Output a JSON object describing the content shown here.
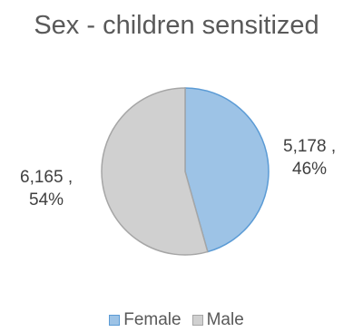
{
  "chart_data": {
    "type": "pie",
    "title": "Sex - children sensitized",
    "categories": [
      "Female",
      "Male"
    ],
    "values": [
      5178,
      6165
    ],
    "value_labels": [
      "5,178 ,",
      "6,165 ,"
    ],
    "percent_labels": [
      "46%",
      "54%"
    ],
    "colors": [
      "#9dc3e6",
      "#d0d0d0"
    ],
    "edge_colors": [
      "#5b9bd5",
      "#a6a6a6"
    ],
    "legend": "bottom",
    "legend_entries": [
      "Female",
      "Male"
    ]
  }
}
